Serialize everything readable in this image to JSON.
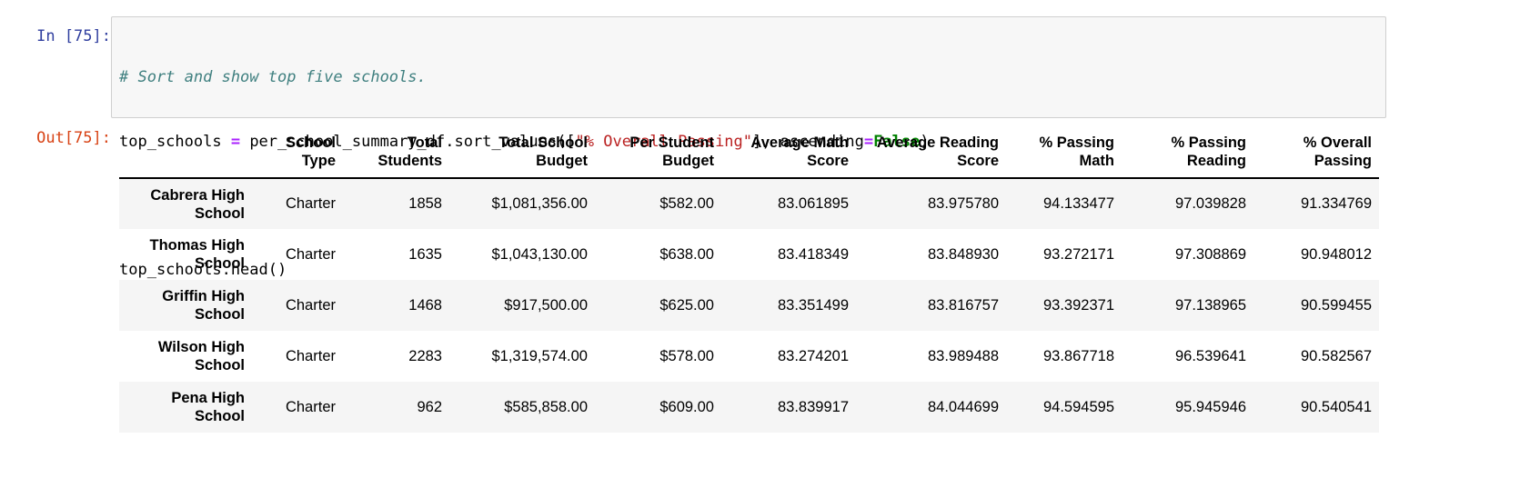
{
  "cell_in": {
    "prompt": "In [75]:",
    "code": {
      "comment": "# Sort and show top five schools.",
      "line2_a": "top_schools ",
      "line2_eq": "=",
      "line2_b": " per_school_summary_df.sort_values([",
      "line2_str": "\"% Overall Passing\"",
      "line2_c": "], ascending",
      "line2_eq2": "=",
      "line2_kw": "False",
      "line2_d": ")",
      "line4": "top_schools.head()"
    }
  },
  "cell_out": {
    "prompt": "Out[75]:",
    "columns": [
      [
        "School",
        "Type"
      ],
      [
        "Total",
        "Students"
      ],
      [
        "Total School",
        "Budget"
      ],
      [
        "Per Student",
        "Budget"
      ],
      [
        "Average Math",
        "Score"
      ],
      [
        "Average Reading",
        "Score"
      ],
      [
        "% Passing",
        "Math"
      ],
      [
        "% Passing",
        "Reading"
      ],
      [
        "% Overall",
        "Passing"
      ]
    ],
    "rows": [
      {
        "index": [
          "Cabrera High",
          "School"
        ],
        "values": [
          "Charter",
          "1858",
          "$1,081,356.00",
          "$582.00",
          "83.061895",
          "83.975780",
          "94.133477",
          "97.039828",
          "91.334769"
        ]
      },
      {
        "index": [
          "Thomas High",
          "School"
        ],
        "values": [
          "Charter",
          "1635",
          "$1,043,130.00",
          "$638.00",
          "83.418349",
          "83.848930",
          "93.272171",
          "97.308869",
          "90.948012"
        ]
      },
      {
        "index": [
          "Griffin High",
          "School"
        ],
        "values": [
          "Charter",
          "1468",
          "$917,500.00",
          "$625.00",
          "83.351499",
          "83.816757",
          "93.392371",
          "97.138965",
          "90.599455"
        ]
      },
      {
        "index": [
          "Wilson High",
          "School"
        ],
        "values": [
          "Charter",
          "2283",
          "$1,319,574.00",
          "$578.00",
          "83.274201",
          "83.989488",
          "93.867718",
          "96.539641",
          "90.582567"
        ]
      },
      {
        "index": [
          "Pena High",
          "School"
        ],
        "values": [
          "Charter",
          "962",
          "$585,858.00",
          "$609.00",
          "83.839917",
          "84.044699",
          "94.594595",
          "95.945946",
          "90.540541"
        ]
      }
    ]
  },
  "colors": {
    "in_prompt": "#303f9f",
    "out_prompt": "#d84315",
    "comment": "#408080",
    "string": "#ba2121",
    "keyword": "#008000",
    "operator": "#aa22ff"
  }
}
